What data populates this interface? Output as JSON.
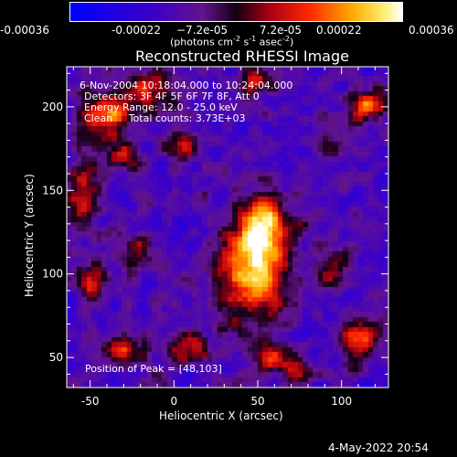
{
  "colorbar": {
    "ticks": [
      "-0.00036",
      "-0.00022",
      "−7.2e-05",
      "7.2e-05",
      "0.00022",
      "0.00036"
    ],
    "unit_main": "(photons cm",
    "unit_exp1": "-2",
    "unit_mid": " s",
    "unit_exp2": "-1",
    "unit_mid2": " asec",
    "unit_exp3": "-2",
    "unit_end": ")"
  },
  "title": "Reconstructed RHESSI Image",
  "annotations": {
    "line1": "6-Nov-2004 10:18:04.000 to 10:24:04.000",
    "line2": "Detectors: 3F 4F 5F 6F 7F 8F, Att 0",
    "line3": "Energy Range: 12.0 - 25.0 keV",
    "line4": "Clean     Total counts: 3.73E+03",
    "peak": "Position of Peak = [48,103]"
  },
  "footer_date": "4-May-2022 20:54",
  "colors": {
    "background": "#000000",
    "axis": "#ffffff",
    "low": "#3b00c8",
    "mid": "#ff3000",
    "high": "#ffffc0"
  },
  "chart_data": {
    "type": "heatmap",
    "title": "Reconstructed RHESSI Image",
    "xlabel": "Heliocentric X (arcsec)",
    "ylabel": "Heliocentric Y (arcsec)",
    "xlim": [
      -64,
      128
    ],
    "ylim": [
      32,
      224
    ],
    "xticks": [
      -50,
      0,
      50,
      100
    ],
    "yticks": [
      50,
      100,
      150,
      200
    ],
    "colorbar_range": [
      -0.00036,
      0.00036
    ],
    "peak_position": [
      48,
      103
    ],
    "sources": [
      {
        "x": 48,
        "y": 103,
        "sx": 14,
        "sy": 22,
        "amp": 1.0
      },
      {
        "x": 55,
        "y": 130,
        "sx": 10,
        "sy": 12,
        "amp": 0.7
      },
      {
        "x": -40,
        "y": 195,
        "sx": 12,
        "sy": 10,
        "amp": 0.75
      },
      {
        "x": -15,
        "y": 210,
        "sx": 10,
        "sy": 8,
        "amp": 0.6
      },
      {
        "x": -55,
        "y": 150,
        "sx": 7,
        "sy": 14,
        "amp": 0.6
      },
      {
        "x": -30,
        "y": 170,
        "sx": 6,
        "sy": 6,
        "amp": 0.55
      },
      {
        "x": 5,
        "y": 175,
        "sx": 8,
        "sy": 6,
        "amp": 0.5
      },
      {
        "x": 50,
        "y": 215,
        "sx": 8,
        "sy": 6,
        "amp": 0.5
      },
      {
        "x": 115,
        "y": 200,
        "sx": 7,
        "sy": 7,
        "amp": 0.85
      },
      {
        "x": 95,
        "y": 180,
        "sx": 6,
        "sy": 6,
        "amp": 0.4
      },
      {
        "x": -30,
        "y": 55,
        "sx": 8,
        "sy": 6,
        "amp": 0.65
      },
      {
        "x": -50,
        "y": 95,
        "sx": 6,
        "sy": 8,
        "amp": 0.55
      },
      {
        "x": 10,
        "y": 55,
        "sx": 9,
        "sy": 7,
        "amp": 0.55
      },
      {
        "x": 60,
        "y": 48,
        "sx": 8,
        "sy": 6,
        "amp": 0.7
      },
      {
        "x": 75,
        "y": 40,
        "sx": 6,
        "sy": 5,
        "amp": 0.6
      },
      {
        "x": 110,
        "y": 60,
        "sx": 8,
        "sy": 10,
        "amp": 0.6
      },
      {
        "x": 95,
        "y": 100,
        "sx": 6,
        "sy": 8,
        "amp": 0.45
      },
      {
        "x": -20,
        "y": 115,
        "sx": 6,
        "sy": 6,
        "amp": 0.4
      }
    ]
  }
}
